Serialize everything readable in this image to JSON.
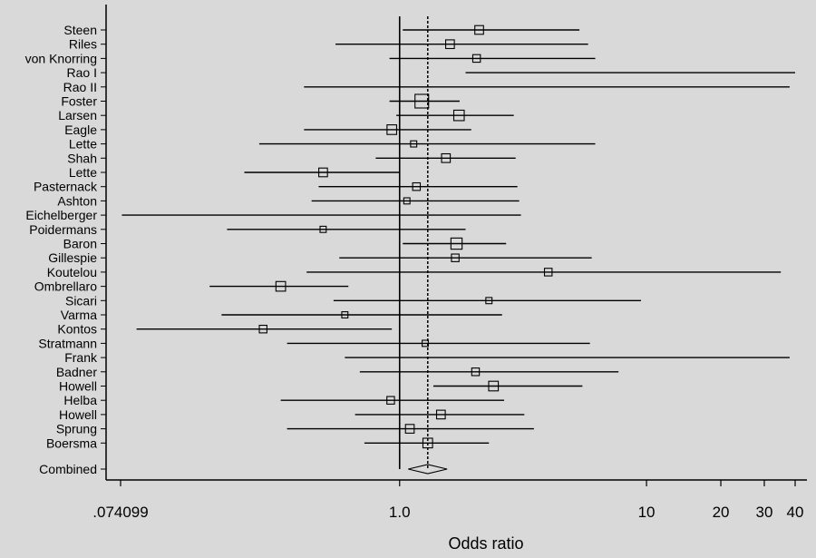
{
  "chart_data": {
    "type": "forest",
    "title": "",
    "xlabel": "Odds ratio",
    "x_scale": "log",
    "xlim": [
      0.074099,
      40
    ],
    "x_ticks": [
      {
        "value": 0.074099,
        "label": ".074099"
      },
      {
        "value": 1,
        "label": "1.0"
      },
      {
        "value": 10,
        "label": "10"
      },
      {
        "value": 20,
        "label": "20"
      },
      {
        "value": 30,
        "label": "30"
      },
      {
        "value": 40,
        "label": "40"
      }
    ],
    "reference_line": 1,
    "combined_line": 1.3,
    "studies": [
      {
        "name": "Steen",
        "or": 2.1,
        "lo": 1.03,
        "hi": 5.35,
        "weight": 3
      },
      {
        "name": "Riles",
        "or": 1.6,
        "lo": 0.55,
        "hi": 5.8,
        "weight": 3
      },
      {
        "name": "von Knorring",
        "or": 2.05,
        "lo": 0.91,
        "hi": 6.2,
        "weight": 2
      },
      {
        "name": "Rao I",
        "or": null,
        "lo": 1.85,
        "hi": 40,
        "weight": 0
      },
      {
        "name": "Rao II",
        "or": null,
        "lo": 0.41,
        "hi": 38,
        "weight": 0
      },
      {
        "name": "Foster",
        "or": 1.23,
        "lo": 0.91,
        "hi": 1.75,
        "weight": 10
      },
      {
        "name": "Larsen",
        "or": 1.74,
        "lo": 0.97,
        "hi": 2.9,
        "weight": 5
      },
      {
        "name": "Eagle",
        "or": 0.93,
        "lo": 0.41,
        "hi": 1.95,
        "weight": 4
      },
      {
        "name": "Lette",
        "or": 1.14,
        "lo": 0.27,
        "hi": 6.2,
        "weight": 1
      },
      {
        "name": "Shah",
        "or": 1.54,
        "lo": 0.8,
        "hi": 2.95,
        "weight": 3
      },
      {
        "name": "Lette",
        "or": 0.49,
        "lo": 0.235,
        "hi": 1.0,
        "weight": 3
      },
      {
        "name": "Pasternack",
        "or": 1.17,
        "lo": 0.47,
        "hi": 3.0,
        "weight": 2
      },
      {
        "name": "Ashton",
        "or": 1.07,
        "lo": 0.44,
        "hi": 3.05,
        "weight": 1
      },
      {
        "name": "Eichelberger",
        "or": null,
        "lo": 0.075,
        "hi": 3.1,
        "weight": 0
      },
      {
        "name": "Poidermans",
        "or": 0.49,
        "lo": 0.2,
        "hi": 1.85,
        "weight": 1
      },
      {
        "name": "Baron",
        "or": 1.7,
        "lo": 1.03,
        "hi": 2.7,
        "weight": 6
      },
      {
        "name": "Gillespie",
        "or": 1.68,
        "lo": 0.57,
        "hi": 6.0,
        "weight": 2
      },
      {
        "name": "Koutelou",
        "or": 4.0,
        "lo": 0.42,
        "hi": 35,
        "weight": 2
      },
      {
        "name": "Ombrellaro",
        "or": 0.33,
        "lo": 0.17,
        "hi": 0.62,
        "weight": 4
      },
      {
        "name": "Sicari",
        "or": 2.3,
        "lo": 0.54,
        "hi": 9.5,
        "weight": 1
      },
      {
        "name": "Varma",
        "or": 0.6,
        "lo": 0.19,
        "hi": 2.6,
        "weight": 1
      },
      {
        "name": "Kontos",
        "or": 0.28,
        "lo": 0.086,
        "hi": 0.93,
        "weight": 2
      },
      {
        "name": "Stratmann",
        "or": 1.27,
        "lo": 0.35,
        "hi": 5.9,
        "weight": 1
      },
      {
        "name": "Frank",
        "or": null,
        "lo": 0.6,
        "hi": 38,
        "weight": 0
      },
      {
        "name": "Badner",
        "or": 2.03,
        "lo": 0.69,
        "hi": 7.7,
        "weight": 2
      },
      {
        "name": "Howell",
        "or": 2.4,
        "lo": 1.37,
        "hi": 5.5,
        "weight": 4
      },
      {
        "name": "Helba",
        "or": 0.92,
        "lo": 0.33,
        "hi": 2.65,
        "weight": 2
      },
      {
        "name": "Howell",
        "or": 1.47,
        "lo": 0.66,
        "hi": 3.2,
        "weight": 3
      },
      {
        "name": "Sprung",
        "or": 1.1,
        "lo": 0.35,
        "hi": 3.5,
        "weight": 3
      },
      {
        "name": "Boersma",
        "or": 1.3,
        "lo": 0.72,
        "hi": 2.3,
        "weight": 4
      }
    ],
    "combined": {
      "name": "Combined",
      "or": 1.3,
      "lo": 1.14,
      "hi": 1.48
    }
  }
}
